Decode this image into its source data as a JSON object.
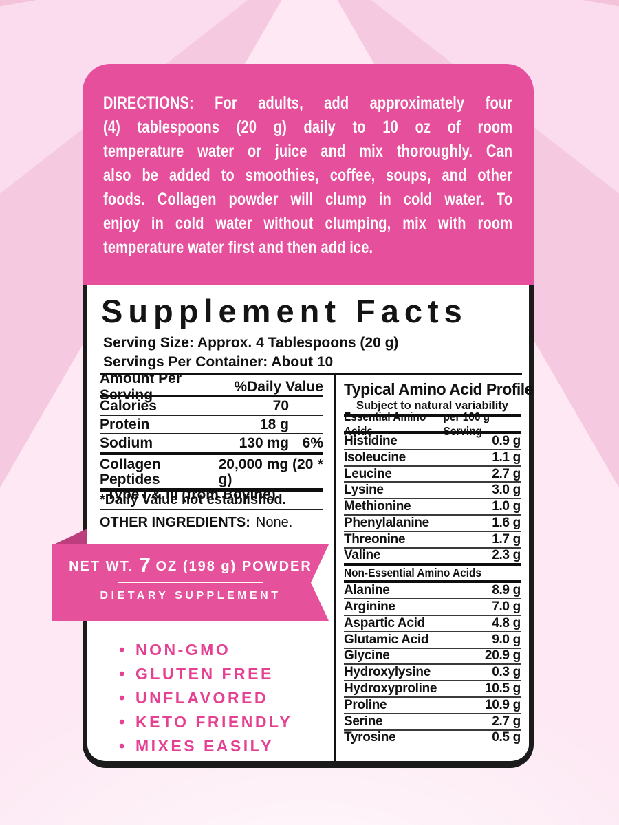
{
  "directions": {
    "lines": [
      "DIRECTIONS: For adults, add approximately four",
      "(4) tablespoons (20 g) daily to 10 oz of room",
      "temperature water or juice and mix thoroughly. Can",
      "also be added to smoothies, coffee, soups, and other",
      "foods. Collagen powder will clump in cold water. To",
      "enjoy in cold water without clumping, mix with room",
      "temperature water first and then add ice."
    ]
  },
  "supplement": {
    "title": "Supplement Facts",
    "serving_size": "Serving Size: Approx. 4 Tablespoons (20 g)",
    "servings_per_container": "Servings Per Container: About 10"
  },
  "left_table": {
    "header_col1": "Amount Per Serving",
    "header_col2": "%Daily Value",
    "rows": [
      {
        "name": "Calories",
        "amount": "70",
        "dv": ""
      },
      {
        "name": "Protein",
        "amount": "18 g",
        "dv": ""
      },
      {
        "name": "Sodium",
        "amount": "130 mg",
        "dv": "6%"
      }
    ],
    "collagen_name": "Collagen Peptides",
    "collagen_amount": "20,000 mg (20 g)",
    "collagen_dv": "*",
    "collagen_sub": "Type I & III (from Bovine)",
    "footnote": "*Daily Value not established.",
    "other_label": "OTHER INGREDIENTS:",
    "other_value": "None."
  },
  "ribbon": {
    "net_prefix": "NET WT. ",
    "net_big": "7",
    "net_suffix": " OZ (198 g) POWDER",
    "subtitle": "DIETARY SUPPLEMENT"
  },
  "features": [
    "NON-GMO",
    "GLUTEN FREE",
    "UNFLAVORED",
    "KETO FRIENDLY",
    "MIXES EASILY"
  ],
  "amino_profile": {
    "title": "Typical Amino Acid Profile",
    "subtitle": "Subject to natural variability",
    "essential_header_col1": "Essential Amino Acids",
    "essential_header_col2": "per 100 g Serving",
    "essential_rows": [
      {
        "name": "Histidine",
        "value": "0.9 g"
      },
      {
        "name": "Isoleucine",
        "value": "1.1 g"
      },
      {
        "name": "Leucine",
        "value": "2.7 g"
      },
      {
        "name": "Lysine",
        "value": "3.0 g"
      },
      {
        "name": "Methionine",
        "value": "1.0 g"
      },
      {
        "name": "Phenylalanine",
        "value": "1.6 g"
      },
      {
        "name": "Threonine",
        "value": "1.7 g"
      },
      {
        "name": "Valine",
        "value": "2.3 g"
      }
    ],
    "non_essential_header": "Non-Essential Amino Acids",
    "non_essential_rows": [
      {
        "name": "Alanine",
        "value": "8.9 g"
      },
      {
        "name": "Arginine",
        "value": "7.0 g"
      },
      {
        "name": "Aspartic Acid",
        "value": "4.8 g"
      },
      {
        "name": "Glutamic Acid",
        "value": "9.0 g"
      },
      {
        "name": "Glycine",
        "value": "20.9 g"
      },
      {
        "name": "Hydroxylysine",
        "value": "0.3 g"
      },
      {
        "name": "Hydroxyproline",
        "value": "10.5 g"
      },
      {
        "name": "Proline",
        "value": "10.9 g"
      },
      {
        "name": "Serine",
        "value": "2.7 g"
      },
      {
        "name": "Tyrosine",
        "value": "0.5 g"
      }
    ]
  },
  "colors": {
    "pink_box": "#e64f9b",
    "pink_ribbon": "#e6519c",
    "pink_fold": "#bd3e7e",
    "pink_feature_text": "#e54092",
    "panel_border": "#1b1b1b",
    "background_pink": "#f5c6dd"
  }
}
